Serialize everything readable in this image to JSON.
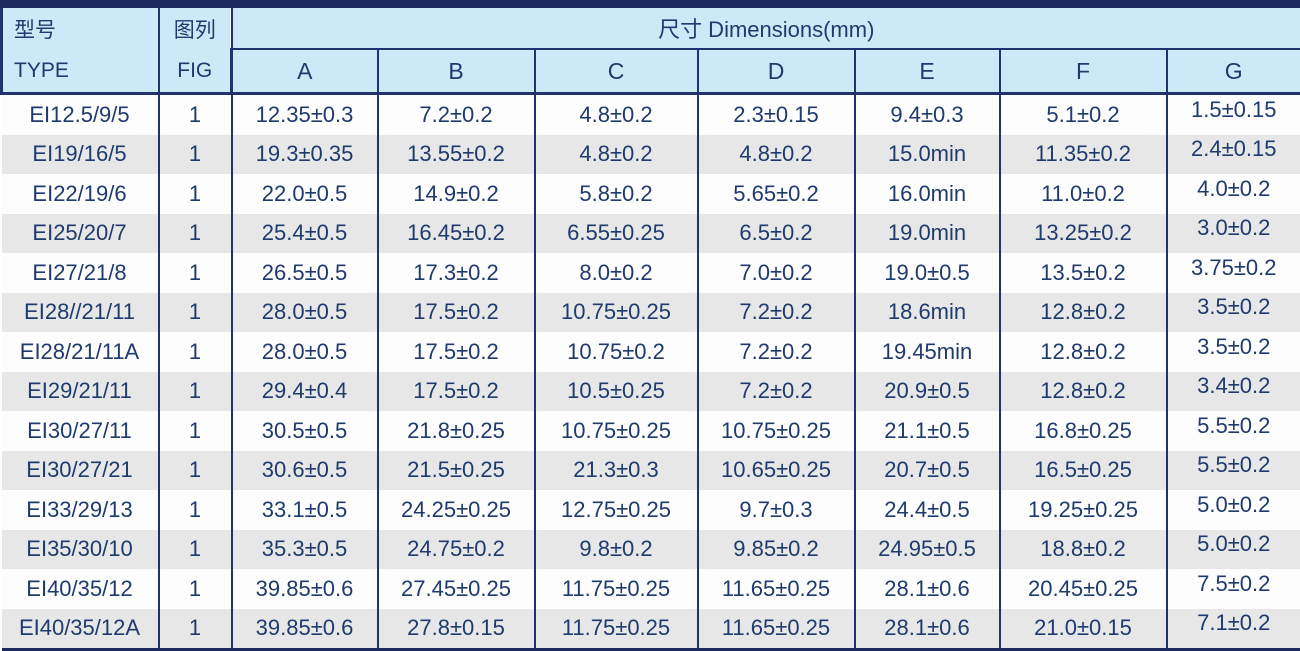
{
  "table": {
    "header": {
      "type_label_cn": "型号",
      "type_label_en": "TYPE",
      "fig_label_cn": "图列",
      "fig_label_en": "FIG",
      "dimensions_label": "尺寸 Dimensions(mm)",
      "dim_columns": [
        "A",
        "B",
        "C",
        "D",
        "E",
        "F",
        "G"
      ]
    },
    "column_keys": [
      "type",
      "fig",
      "dim-a",
      "dim-b",
      "dim-c",
      "dim-d",
      "dim-e",
      "dim-f",
      "dim-g"
    ],
    "rows": [
      {
        "cells": [
          "EI12.5/9/5",
          "1",
          "12.35±0.3",
          "7.2±0.2",
          "4.8±0.2",
          "2.3±0.15",
          "9.4±0.3",
          "5.1±0.2",
          "1.5±0.15"
        ]
      },
      {
        "cells": [
          "EI19/16/5",
          "1",
          "19.3±0.35",
          "13.55±0.2",
          "4.8±0.2",
          "4.8±0.2",
          "15.0min",
          "11.35±0.2",
          "2.4±0.15"
        ]
      },
      {
        "cells": [
          "EI22/19/6",
          "1",
          "22.0±0.5",
          "14.9±0.2",
          "5.8±0.2",
          "5.65±0.2",
          "16.0min",
          "11.0±0.2",
          "4.0±0.2"
        ]
      },
      {
        "cells": [
          "EI25/20/7",
          "1",
          "25.4±0.5",
          "16.45±0.2",
          "6.55±0.25",
          "6.5±0.2",
          "19.0min",
          "13.25±0.2",
          "3.0±0.2"
        ]
      },
      {
        "cells": [
          "EI27/21/8",
          "1",
          "26.5±0.5",
          "17.3±0.2",
          "8.0±0.2",
          "7.0±0.2",
          "19.0±0.5",
          "13.5±0.2",
          "3.75±0.2"
        ]
      },
      {
        "cells": [
          "EI28//21/11",
          "1",
          "28.0±0.5",
          "17.5±0.2",
          "10.75±0.25",
          "7.2±0.2",
          "18.6min",
          "12.8±0.2",
          "3.5±0.2"
        ]
      },
      {
        "cells": [
          "EI28/21/11A",
          "1",
          "28.0±0.5",
          "17.5±0.2",
          "10.75±0.2",
          "7.2±0.2",
          "19.45min",
          "12.8±0.2",
          "3.5±0.2"
        ]
      },
      {
        "cells": [
          "EI29/21/11",
          "1",
          "29.4±0.4",
          "17.5±0.2",
          "10.5±0.25",
          "7.2±0.2",
          "20.9±0.5",
          "12.8±0.2",
          "3.4±0.2"
        ]
      },
      {
        "cells": [
          "EI30/27/11",
          "1",
          "30.5±0.5",
          "21.8±0.25",
          "10.75±0.25",
          "10.75±0.25",
          "21.1±0.5",
          "16.8±0.25",
          "5.5±0.2"
        ]
      },
      {
        "cells": [
          "EI30/27/21",
          "1",
          "30.6±0.5",
          "21.5±0.25",
          "21.3±0.3",
          "10.65±0.25",
          "20.7±0.5",
          "16.5±0.25",
          "5.5±0.2"
        ]
      },
      {
        "cells": [
          "EI33/29/13",
          "1",
          "33.1±0.5",
          "24.25±0.25",
          "12.75±0.25",
          "9.7±0.3",
          "24.4±0.5",
          "19.25±0.25",
          "5.0±0.2"
        ]
      },
      {
        "cells": [
          "EI35/30/10",
          "1",
          "35.3±0.5",
          "24.75±0.2",
          "9.8±0.2",
          "9.85±0.2",
          "24.95±0.5",
          "18.8±0.2",
          "5.0±0.2"
        ]
      },
      {
        "cells": [
          "EI40/35/12",
          "1",
          "39.85±0.6",
          "27.45±0.25",
          "11.75±0.25",
          "11.65±0.25",
          "28.1±0.6",
          "20.45±0.25",
          "7.5±0.2"
        ]
      },
      {
        "cells": [
          "EI40/35/12A",
          "1",
          "39.85±0.6",
          "27.8±0.15",
          "11.75±0.25",
          "11.65±0.25",
          "28.1±0.6",
          "21.0±0.15",
          "7.1±0.2"
        ]
      }
    ]
  },
  "colors": {
    "header_background": "#cbe9f7",
    "border_navy": "#21336e",
    "thick_band_navy": "#1b2b61",
    "text_navy": "#1f3a6d",
    "stripe_gray": "#e8e7e8",
    "row_white": "#fdfdfd"
  }
}
